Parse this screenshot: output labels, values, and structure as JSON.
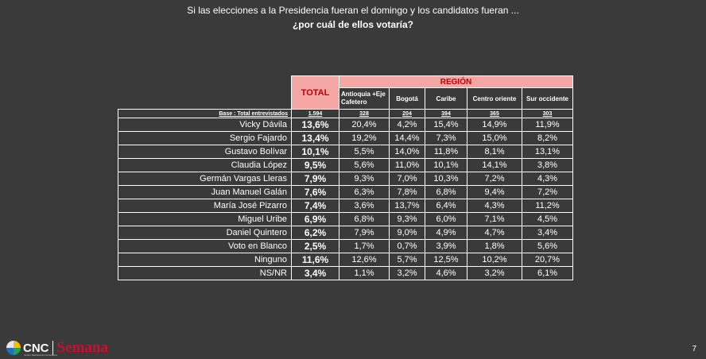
{
  "question": {
    "line1": "Si las elecciones a la Presidencia fueran el domingo y los  candidatos fueran ...",
    "line2": "¿por cuál de ellos votaría?"
  },
  "table": {
    "total_header": "TOTAL",
    "region_header": "REGIÓN",
    "regions": [
      "Antioquia +Eje Cafetero",
      "Bogotá",
      "Caribe",
      "Centro oriente",
      "Sur occidente"
    ],
    "base_label": "Base : Total entrevistados",
    "base_total": "1.594",
    "base_regions": [
      "328",
      "204",
      "394",
      "365",
      "303"
    ],
    "rows": [
      {
        "name": "Vicky Dávila",
        "total": "13,6%",
        "values": [
          "20,4%",
          "4,2%",
          "15,4%",
          "14,9%",
          "11,9%"
        ]
      },
      {
        "name": "Sergio Fajardo",
        "total": "13,4%",
        "values": [
          "19,2%",
          "14,4%",
          "7,3%",
          "15,0%",
          "8,2%"
        ]
      },
      {
        "name": "Gustavo Bolívar",
        "total": "10,1%",
        "values": [
          "5,5%",
          "14,0%",
          "11,8%",
          "8,1%",
          "13,1%"
        ]
      },
      {
        "name": "Claudia López",
        "total": "9,5%",
        "values": [
          "5,6%",
          "11,0%",
          "10,1%",
          "14,1%",
          "3,8%"
        ]
      },
      {
        "name": "Germán Vargas Lleras",
        "total": "7,9%",
        "values": [
          "9,3%",
          "7,0%",
          "10,3%",
          "7,2%",
          "4,3%"
        ]
      },
      {
        "name": "Juan Manuel Galán",
        "total": "7,6%",
        "values": [
          "6,3%",
          "7,8%",
          "6,8%",
          "9,4%",
          "7,2%"
        ]
      },
      {
        "name": "María José Pizarro",
        "total": "7,4%",
        "values": [
          "3,6%",
          "13,7%",
          "6,4%",
          "4,3%",
          "11,2%"
        ]
      },
      {
        "name": "Miguel Uribe",
        "total": "6,9%",
        "values": [
          "6,8%",
          "9,3%",
          "6,0%",
          "7,1%",
          "4,5%"
        ]
      },
      {
        "name": "Daniel Quintero",
        "total": "6,2%",
        "values": [
          "7,9%",
          "9,0%",
          "4,9%",
          "4,7%",
          "3,4%"
        ]
      },
      {
        "name": "Voto en Blanco",
        "total": "2,5%",
        "values": [
          "1,7%",
          "0,7%",
          "3,9%",
          "1,8%",
          "5,6%"
        ]
      },
      {
        "name": "Ninguno",
        "total": "11,6%",
        "values": [
          "12,6%",
          "5,7%",
          "12,5%",
          "10,2%",
          "20,7%"
        ]
      },
      {
        "name": "NS/NR",
        "total": "3,4%",
        "values": [
          "1,1%",
          "3,2%",
          "4,6%",
          "3,2%",
          "6,1%"
        ]
      }
    ]
  },
  "footer": {
    "cnc": "CNC",
    "cnc_sub": "Centro Nacional de Consultoría",
    "semana": "Semana",
    "page_number": "7"
  },
  "colors": {
    "background": "#3a3a3a",
    "header_fill": "#f4a6a4",
    "header_text": "#c00000",
    "semana_red": "#c8102e"
  }
}
